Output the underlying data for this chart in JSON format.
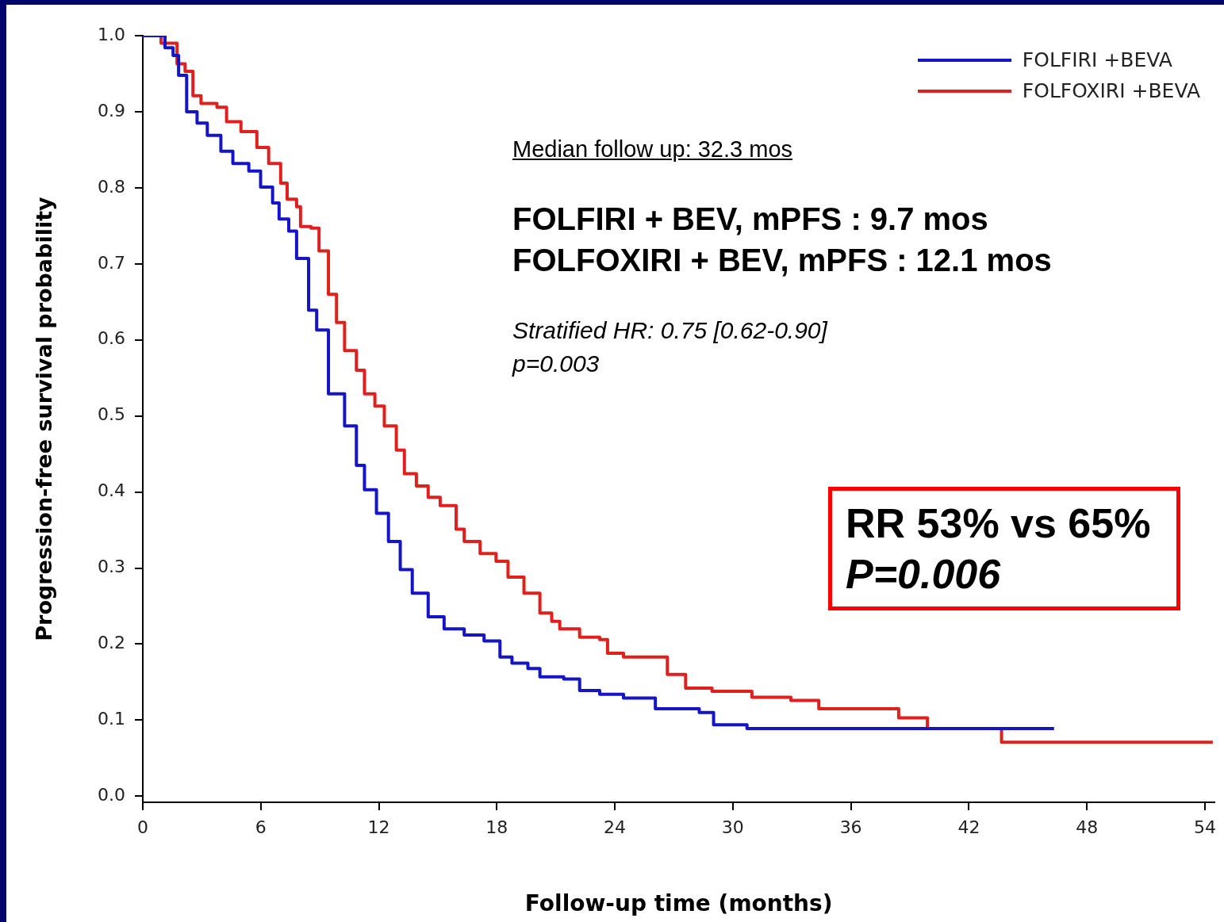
{
  "chart_data": {
    "type": "step",
    "xlabel": "Follow-up time (months)",
    "ylabel": "Progression-free survival probability",
    "xlim": [
      0,
      54.5
    ],
    "ylim": [
      -0.008,
      1.0
    ],
    "xticks": [
      0,
      6,
      12,
      18,
      24,
      30,
      36,
      42,
      48,
      54
    ],
    "yticks": [
      {
        "value": 0,
        "label": "0.0"
      },
      {
        "value": 0.1,
        "label": "0.1"
      },
      {
        "value": 0.2,
        "label": "0.2"
      },
      {
        "value": 0.3,
        "label": "0.3"
      },
      {
        "value": 0.4,
        "label": "0.4"
      },
      {
        "value": 0.5,
        "label": "0.5"
      },
      {
        "value": 0.6,
        "label": "0.6"
      },
      {
        "value": 0.7,
        "label": "0.7"
      },
      {
        "value": 0.8,
        "label": "0.8"
      },
      {
        "value": 0.9,
        "label": "0.9"
      },
      {
        "value": 1,
        "label": "1.0"
      }
    ],
    "grid": false,
    "legend": "top right",
    "marker": "none",
    "line_style": "solid",
    "series": [
      {
        "name": "FOLFIRI +BEVA",
        "color": "#1414c8",
        "x": [
          0,
          1.13,
          1.54,
          1.82,
          2.23,
          2.76,
          3.28,
          3.97,
          4.58,
          5.39,
          5.99,
          6.6,
          6.93,
          7.42,
          7.82,
          8.43,
          8.84,
          9.44,
          10.26,
          10.86,
          11.27,
          11.88,
          12.49,
          13.09,
          13.7,
          14.51,
          15.32,
          16.34,
          17.35,
          18.16,
          18.77,
          19.58,
          20.19,
          21.4,
          22.21,
          23.23,
          24.44,
          26.06,
          28.29,
          29.02,
          30.72,
          46.33
        ],
        "values": [
          1.0,
          0.984,
          0.974,
          0.948,
          0.9,
          0.885,
          0.869,
          0.848,
          0.832,
          0.822,
          0.801,
          0.78,
          0.759,
          0.743,
          0.707,
          0.639,
          0.613,
          0.529,
          0.487,
          0.435,
          0.403,
          0.372,
          0.335,
          0.298,
          0.267,
          0.236,
          0.22,
          0.212,
          0.204,
          0.183,
          0.175,
          0.168,
          0.157,
          0.154,
          0.139,
          0.134,
          0.129,
          0.115,
          0.11,
          0.094,
          0.089,
          0.089
        ]
      },
      {
        "name": "FOLFOXIRI +BEVA",
        "color": "#e0201c",
        "x": [
          0,
          0.93,
          1.74,
          2.15,
          2.55,
          2.96,
          3.77,
          4.26,
          4.99,
          5.8,
          6.4,
          7.01,
          7.34,
          7.82,
          8.02,
          8.55,
          8.96,
          9.44,
          9.85,
          10.26,
          10.86,
          11.27,
          11.8,
          12.28,
          12.89,
          13.3,
          13.91,
          14.51,
          15.12,
          15.93,
          16.34,
          17.15,
          17.96,
          18.57,
          19.38,
          20.19,
          20.79,
          21.2,
          22.21,
          23.23,
          23.63,
          24.44,
          26.06,
          26.67,
          27.6,
          28.94,
          30.97,
          32.95,
          34.37,
          38.43,
          39.89,
          43.66,
          54.4
        ],
        "values": [
          1.0,
          0.99,
          0.963,
          0.953,
          0.921,
          0.911,
          0.906,
          0.887,
          0.874,
          0.853,
          0.832,
          0.806,
          0.785,
          0.775,
          0.749,
          0.747,
          0.717,
          0.66,
          0.623,
          0.586,
          0.56,
          0.529,
          0.513,
          0.487,
          0.455,
          0.424,
          0.408,
          0.393,
          0.382,
          0.351,
          0.335,
          0.319,
          0.309,
          0.288,
          0.267,
          0.241,
          0.23,
          0.22,
          0.209,
          0.206,
          0.188,
          0.183,
          0.183,
          0.16,
          0.142,
          0.138,
          0.13,
          0.126,
          0.115,
          0.103,
          0.089,
          0.071,
          0.071
        ]
      }
    ],
    "annotations": [
      "Median follow up: 32.3 mos",
      "FOLFIRI + BEV, mPFS : 9.7 mos",
      "FOLFOXIRI + BEV, mPFS : 12.1 mos",
      "Stratified HR: 0.75 [0.62-0.90]",
      "p=0.003",
      "RR 53% vs 65%",
      "P=0.006"
    ]
  }
}
